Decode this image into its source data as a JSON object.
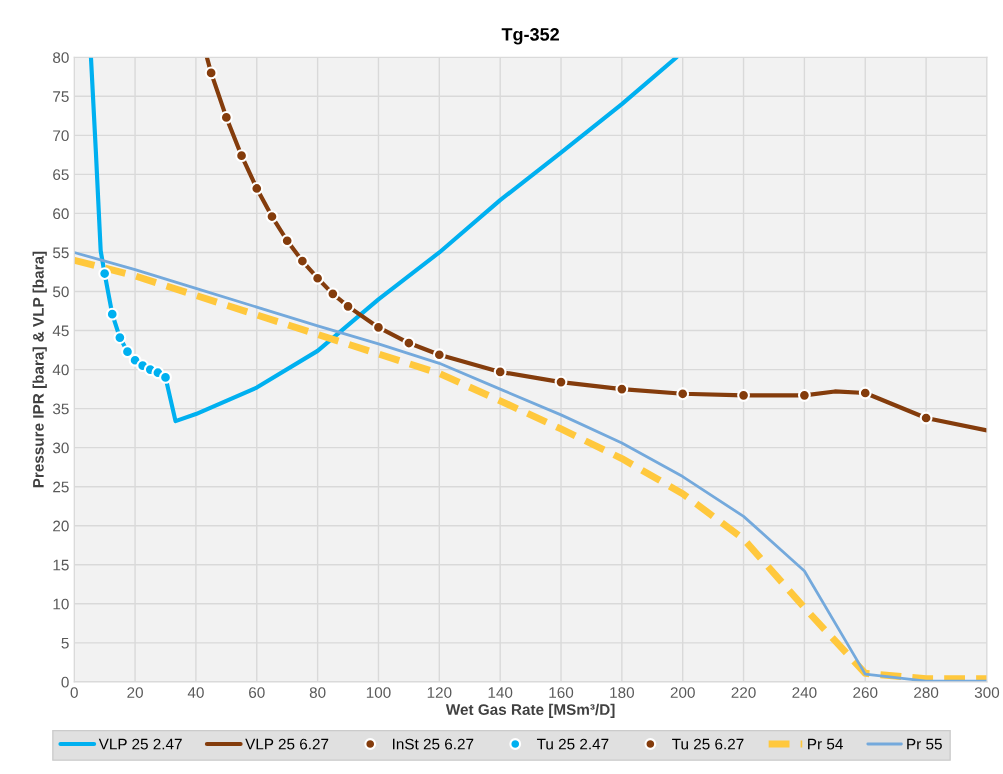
{
  "chart_data": {
    "type": "line",
    "title": "Tg-352",
    "xlabel": "Wet Gas Rate [MSm³/D]",
    "ylabel": "Pressure IPR [bara] & VLP [bara]",
    "xlim": [
      0,
      300
    ],
    "xticks": [
      0,
      20,
      40,
      60,
      80,
      100,
      120,
      140,
      160,
      180,
      200,
      220,
      240,
      260,
      280,
      300
    ],
    "ylim": [
      0,
      80
    ],
    "yticks": [
      0,
      5,
      10,
      15,
      20,
      25,
      30,
      35,
      40,
      45,
      50,
      55,
      60,
      65,
      70,
      75,
      80
    ],
    "grid": true,
    "legend": "bottom",
    "series": [
      {
        "name": "VLP 25 2.47",
        "color": "#00b0f0",
        "line_style": "solid",
        "marker": "none",
        "x": [
          5.5,
          7.1,
          8.7,
          10,
          12.5,
          15,
          17.5,
          20,
          22.5,
          25,
          27.5,
          30,
          33.3,
          40,
          60,
          80,
          100,
          120,
          140,
          160,
          180,
          198
        ],
        "values": [
          80,
          68,
          55.2,
          52.3,
          47.1,
          44.1,
          42.3,
          41.2,
          40.5,
          40.0,
          39.6,
          39.0,
          33.4,
          34.3,
          37.7,
          42.4,
          49,
          55,
          61.7,
          67.8,
          74,
          80
        ]
      },
      {
        "name": "VLP 25 6.27",
        "color": "#843c0c",
        "line_style": "solid",
        "marker": "none",
        "x": [
          43.6,
          45,
          50,
          55,
          60,
          65,
          70,
          75,
          80,
          85,
          90,
          100,
          110,
          120,
          140,
          160,
          180,
          200,
          220,
          240,
          250,
          260,
          280,
          300
        ],
        "values": [
          80,
          78.0,
          72.3,
          67.4,
          63.2,
          59.6,
          56.5,
          53.9,
          51.7,
          49.7,
          48.1,
          45.4,
          43.4,
          41.9,
          39.7,
          38.4,
          37.5,
          36.9,
          36.7,
          36.7,
          37.2,
          37.0,
          33.8,
          32.2
        ]
      },
      {
        "name": "InSt 25 6.27",
        "type": "scatter",
        "color": "#843c0c",
        "marker": "circle",
        "x": [
          200,
          220,
          240,
          260,
          280
        ],
        "values": [
          36.9,
          36.7,
          36.7,
          37.0,
          33.8
        ]
      },
      {
        "name": "Tu 25 2.47",
        "type": "scatter",
        "color": "#00b0f0",
        "marker": "circle",
        "x": [
          10,
          12.5,
          15,
          17.5,
          20,
          22.5,
          25,
          27.5,
          30
        ],
        "values": [
          52.3,
          47.1,
          44.1,
          42.3,
          41.2,
          40.5,
          40.0,
          39.6,
          39.0
        ]
      },
      {
        "name": "Tu 25 6.27",
        "type": "scatter",
        "color": "#843c0c",
        "marker": "circle",
        "x": [
          45,
          50,
          55,
          60,
          65,
          70,
          75,
          80,
          85,
          90,
          100,
          110,
          120,
          140,
          160,
          180
        ],
        "values": [
          78.0,
          72.3,
          67.4,
          63.2,
          59.6,
          56.5,
          53.9,
          51.7,
          49.7,
          48.1,
          45.4,
          43.4,
          41.9,
          39.7,
          38.4,
          37.5
        ]
      },
      {
        "name": "Pr 54",
        "color": "#ffc83d",
        "line_style": "dashed",
        "marker": "none",
        "x": [
          0,
          20,
          40,
          60,
          80,
          100,
          120,
          140,
          160,
          180,
          200,
          220,
          240,
          260,
          280,
          300
        ],
        "values": [
          54,
          52,
          49.5,
          47,
          44.5,
          42,
          39.5,
          36,
          32.4,
          28.6,
          24.1,
          18.3,
          9.5,
          1.1,
          0.4,
          0.4
        ]
      },
      {
        "name": "Pr 55",
        "color": "#74a9dc",
        "line_style": "solid",
        "marker": "none",
        "x": [
          0,
          20,
          40,
          60,
          80,
          100,
          120,
          140,
          160,
          180,
          200,
          220,
          240,
          260,
          280,
          300
        ],
        "values": [
          55,
          52.8,
          50.4,
          48,
          45.6,
          43.3,
          40.8,
          37.5,
          34.2,
          30.6,
          26.3,
          21.2,
          14.2,
          1.0,
          0.1,
          0.1
        ]
      }
    ]
  }
}
